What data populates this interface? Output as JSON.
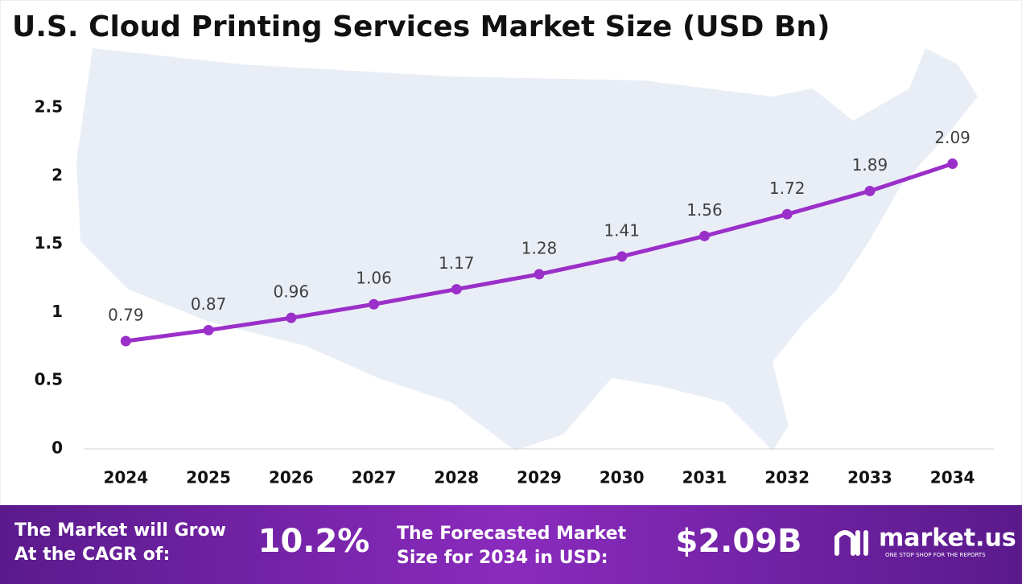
{
  "chart_data": {
    "type": "line",
    "title": "U.S. Cloud Printing Services Market Size (USD Bn)",
    "categories": [
      "2024",
      "2025",
      "2026",
      "2027",
      "2028",
      "2029",
      "2030",
      "2031",
      "2032",
      "2033",
      "2034"
    ],
    "values": [
      0.79,
      0.87,
      0.96,
      1.06,
      1.17,
      1.28,
      1.41,
      1.56,
      1.72,
      1.89,
      2.09
    ],
    "color": "#9b2fc9",
    "ylim": [
      0,
      2.5
    ],
    "yticks": [
      0,
      0.5,
      1,
      1.5,
      2,
      2.5
    ],
    "grid": false
  },
  "footer": {
    "cagr_label": [
      "The Market will Grow",
      "At the CAGR of:"
    ],
    "cagr_value": "10.2%",
    "forecast_label": [
      "The Forecasted Market",
      "Size for 2034 in USD:"
    ],
    "forecast_value": "$2.09B",
    "brand": "market.us",
    "tagline": "ONE STOP SHOP FOR THE REPORTS"
  }
}
